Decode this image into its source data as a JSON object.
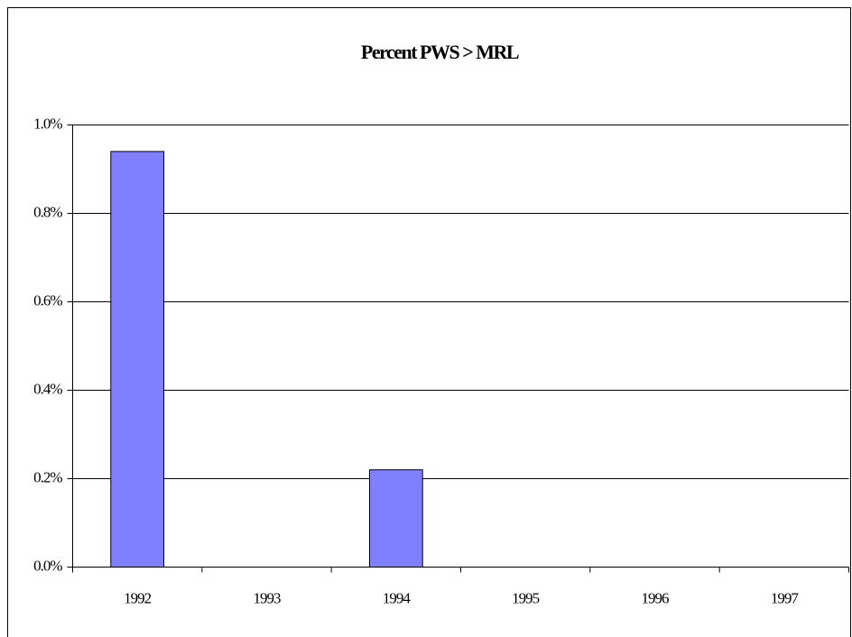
{
  "chart_data": {
    "type": "bar",
    "title": "Percent PWS > MRL",
    "categories": [
      "1992",
      "1993",
      "1994",
      "1995",
      "1996",
      "1997"
    ],
    "values": [
      0.94,
      0,
      0.22,
      0,
      0,
      0
    ],
    "color": "#8080ff",
    "ylim": [
      0,
      1.0
    ],
    "yticks": [
      {
        "value": 0,
        "label": "0.0%"
      },
      {
        "value": 0.2,
        "label": "0.2%"
      },
      {
        "value": 0.4,
        "label": "0.4%"
      },
      {
        "value": 0.6,
        "label": "0.6%"
      },
      {
        "value": 0.8,
        "label": "0.8%"
      },
      {
        "value": 1.0,
        "label": "1.0%"
      }
    ],
    "grid": true
  }
}
